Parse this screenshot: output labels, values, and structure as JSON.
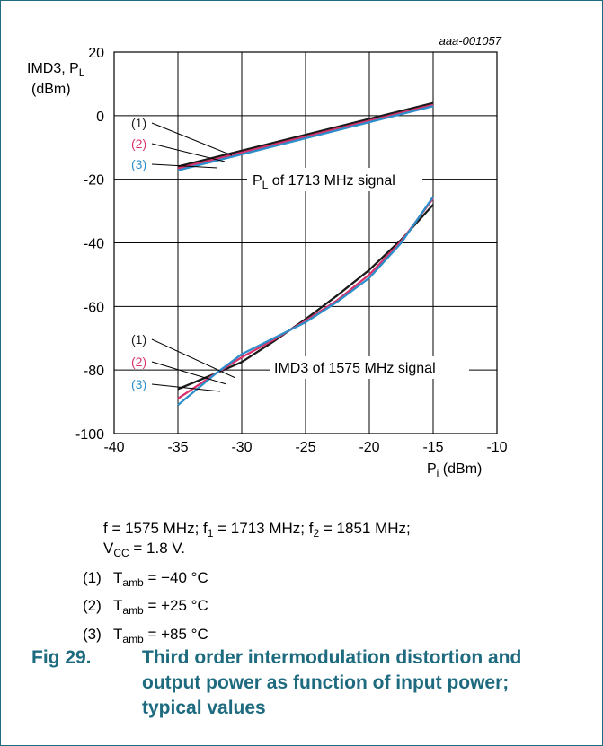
{
  "chart_data": {
    "type": "line",
    "id_label": "aaa-001057",
    "ylabel": {
      "line1": "IMD3, P",
      "line1_sub": "L",
      "line2": "(dBm)"
    },
    "xlabel": {
      "main": "P",
      "sub": "i",
      "unit": " (dBm)"
    },
    "xlim": [
      -40,
      -10
    ],
    "ylim": [
      -100,
      20
    ],
    "x_ticks": [
      "-40",
      "-35",
      "-30",
      "-25",
      "-20",
      "-15",
      "-10"
    ],
    "y_ticks": [
      "-100",
      "-80",
      "-60",
      "-40",
      "-20",
      "0",
      "20"
    ],
    "x_tick_values": [
      -40,
      -35,
      -30,
      -25,
      -20,
      -15,
      -10
    ],
    "y_tick_values": [
      -100,
      -80,
      -60,
      -40,
      -20,
      0,
      20
    ],
    "groups": [
      {
        "label_main": "P",
        "label_sub": "L",
        "label_rest": " of 1713 MHz signal",
        "series": [
          {
            "name": "(1)",
            "color": "#1a1a1a",
            "points": [
              [
                -35,
                -16.0
              ],
              [
                -15,
                4.0
              ]
            ]
          },
          {
            "name": "(2)",
            "color": "#d9336e",
            "points": [
              [
                -35,
                -16.6
              ],
              [
                -15,
                3.4
              ]
            ]
          },
          {
            "name": "(3)",
            "color": "#2c8fc9",
            "points": [
              [
                -35,
                -17.2
              ],
              [
                -15,
                3.0
              ]
            ]
          }
        ]
      },
      {
        "label_main": "IMD3 of 1575 MHz signal",
        "label_sub": "",
        "label_rest": "",
        "series": [
          {
            "name": "(1)",
            "color": "#1a1a1a",
            "points": [
              [
                -35,
                -86.0
              ],
              [
                -32,
                -81.0
              ],
              [
                -30,
                -77.5
              ],
              [
                -27.5,
                -71.0
              ],
              [
                -25,
                -64.0
              ],
              [
                -22.5,
                -56.5
              ],
              [
                -20,
                -48.5
              ],
              [
                -17.5,
                -39.0
              ],
              [
                -15,
                -28.0
              ]
            ]
          },
          {
            "name": "(2)",
            "color": "#d9336e",
            "points": [
              [
                -35,
                -89.0
              ],
              [
                -32,
                -81.0
              ],
              [
                -30,
                -76.0
              ],
              [
                -27.5,
                -70.5
              ],
              [
                -25,
                -64.5
              ],
              [
                -22.5,
                -58.0
              ],
              [
                -20,
                -50.0
              ],
              [
                -17.5,
                -39.5
              ],
              [
                -15,
                -26.0
              ]
            ]
          },
          {
            "name": "(3)",
            "color": "#2c8fc9",
            "points": [
              [
                -35,
                -91.0
              ],
              [
                -32,
                -81.0
              ],
              [
                -30,
                -75.0
              ],
              [
                -27.5,
                -70.0
              ],
              [
                -25,
                -65.0
              ],
              [
                -22.5,
                -58.5
              ],
              [
                -20,
                -51.0
              ],
              [
                -17.5,
                -40.0
              ],
              [
                -15,
                -25.5
              ]
            ]
          }
        ]
      }
    ]
  },
  "conditions": {
    "line1": {
      "a": "f = 1575 MHz; f",
      "a_sub": "1",
      "b": " = 1713 MHz; f",
      "b_sub": "2",
      "c": " = 1851 MHz;"
    },
    "line2": {
      "a": "V",
      "a_sub": "CC",
      "b": " = 1.8 V."
    }
  },
  "notes": [
    {
      "num": "(1)",
      "sym": "T",
      "sub": "amb",
      "text": " = −40 °C"
    },
    {
      "num": "(2)",
      "sym": "T",
      "sub": "amb",
      "text": " = +25 °C"
    },
    {
      "num": "(3)",
      "sym": "T",
      "sub": "amb",
      "text": " = +85 °C"
    }
  ],
  "caption": {
    "number": "Fig 29.",
    "text": "Third order intermodulation distortion and output power as function of input power; typical values"
  }
}
